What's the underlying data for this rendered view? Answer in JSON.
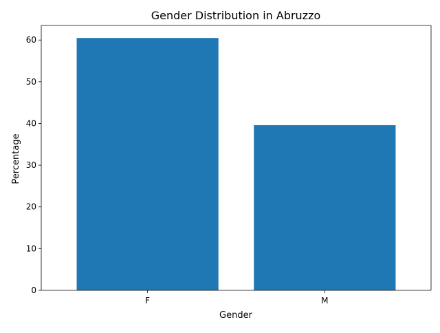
{
  "chart_data": {
    "type": "bar",
    "title": "Gender Distribution in Abruzzo",
    "xlabel": "Gender",
    "ylabel": "Percentage",
    "categories": [
      "F",
      "M"
    ],
    "values": [
      60.5,
      39.6
    ],
    "ylim": [
      0,
      63.5
    ],
    "yticks": [
      0,
      10,
      20,
      30,
      40,
      50,
      60
    ],
    "bar_color": "#1f77b4",
    "grid": false,
    "legend": "none"
  }
}
